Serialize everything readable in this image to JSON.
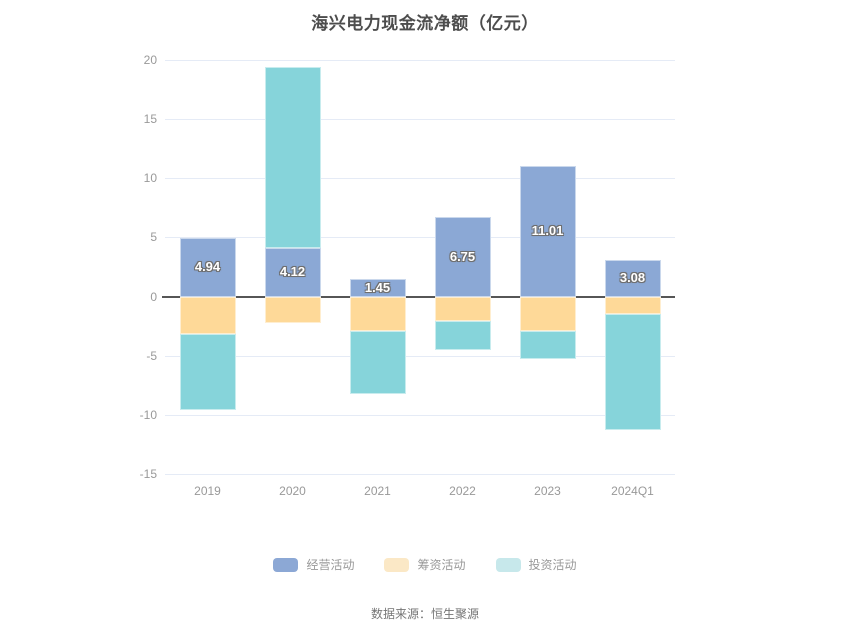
{
  "title": "海兴电力现金流净额（亿元）",
  "source": "数据来源：恒生聚源",
  "legend": [
    {
      "label": "经营活动",
      "swatch_color": "#8ca8d5"
    },
    {
      "label": "筹资活动",
      "swatch_color": "#fbe8c6"
    },
    {
      "label": "投资活动",
      "swatch_color": "#c7e8eb"
    }
  ],
  "colors": {
    "operating": "#8ba8d5",
    "financing": "#fed998",
    "investing": "#86d4da",
    "grid": "#e5ebf6",
    "zero_axis": "#565656",
    "axis_text": "#999999",
    "title_text": "#4d4d4d"
  },
  "chart_data": {
    "type": "bar",
    "stacked": true,
    "title": "海兴电力现金流净额（亿元）",
    "xlabel": "",
    "ylabel": "",
    "categories": [
      "2019",
      "2020",
      "2021",
      "2022",
      "2023",
      "2024Q1"
    ],
    "series": [
      {
        "name": "经营活动",
        "color": "#8ba8d5",
        "values": [
          4.94,
          4.12,
          1.45,
          6.75,
          11.01,
          3.08
        ],
        "data_labels": [
          "4.94",
          "4.12",
          "1.45",
          "6.75",
          "11.01",
          "3.08"
        ],
        "labels_visible": true
      },
      {
        "name": "筹资活动",
        "color": "#fed998",
        "values": [
          -3.2,
          -2.2,
          -2.95,
          -2.1,
          -2.9,
          -1.5
        ],
        "data_labels": [],
        "labels_visible": false
      },
      {
        "name": "投资活动",
        "color": "#86d4da",
        "values": [
          -6.35,
          15.3,
          -5.25,
          -2.45,
          -2.35,
          -9.75
        ],
        "data_labels": [],
        "labels_visible": false
      }
    ],
    "yticks": [
      20,
      15,
      10,
      5,
      0,
      -5,
      -10,
      -15
    ],
    "ylim": [
      -15,
      20
    ],
    "grid": true,
    "legend_position": "bottom"
  }
}
